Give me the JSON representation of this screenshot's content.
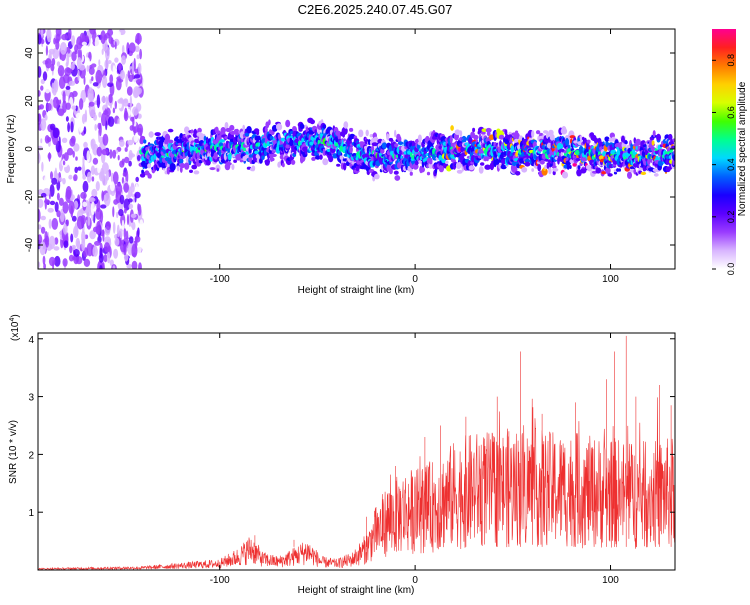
{
  "figure": {
    "title": "C2E6.2025.240.07.45.G07"
  },
  "chart_data": [
    {
      "type": "heatmap",
      "name": "spectrogram",
      "xlabel": "Height of straight line (km)",
      "ylabel": "Frequency (Hz)",
      "xlim": [
        -193,
        133
      ],
      "ylim": [
        -50,
        50
      ],
      "xticks": [
        -100,
        0,
        100
      ],
      "xtick_labels": [
        "-100",
        "0",
        "100"
      ],
      "yticks": [
        -40,
        -20,
        0,
        20,
        40
      ],
      "ytick_labels": [
        "-40",
        "-20",
        "0",
        "20",
        "40"
      ],
      "colorbar": {
        "label": "Normalized spectral amplitude",
        "range": [
          0,
          0.92
        ],
        "ticks": [
          0.0,
          0.2,
          0.4,
          0.6,
          0.8
        ],
        "tick_labels": [
          "0.0",
          "0.2",
          "0.4",
          "0.6",
          "0.8"
        ],
        "colors": [
          "#ffffff",
          "#d8b4ff",
          "#9a3cff",
          "#5b00ff",
          "#1a00ff",
          "#0060ff",
          "#00d8ff",
          "#00ff90",
          "#40ff00",
          "#d8ff00",
          "#ffd000",
          "#ff7a00",
          "#ff2020",
          "#ff0090"
        ]
      },
      "noise_region_x": [
        -193,
        -140
      ],
      "ridge_x": [
        -140,
        -120,
        -100,
        -80,
        -60,
        -45,
        -35,
        -20,
        0,
        20,
        35,
        50,
        70,
        90,
        110,
        133
      ],
      "ridge_freq": [
        -3,
        -1,
        0,
        1,
        3,
        3,
        0,
        -3,
        -2,
        -1,
        0,
        -2,
        -1,
        -2,
        -3,
        -1
      ]
    },
    {
      "type": "line",
      "name": "snr",
      "xlabel": "Height of straight line (km)",
      "ylabel": "SNR (10 * v/v)",
      "scale_label": "(x10",
      "scale_exp": "4",
      "scale_close": ")",
      "xlim": [
        -193,
        133
      ],
      "ylim": [
        0,
        4.1
      ],
      "xticks": [
        -100,
        0,
        100
      ],
      "xtick_labels": [
        "-100",
        "0",
        "100"
      ],
      "yticks": [
        1,
        2,
        3,
        4
      ],
      "ytick_labels": [
        "1",
        "2",
        "3",
        "4"
      ],
      "color": "#ee3030",
      "envelope_x": [
        -193,
        -140,
        -120,
        -100,
        -90,
        -84,
        -78,
        -70,
        -62,
        -55,
        -48,
        -40,
        -32,
        -25,
        -20,
        -15,
        -10,
        -5,
        0,
        10,
        20,
        30,
        40,
        50,
        60,
        70,
        80,
        90,
        100,
        110,
        120,
        133
      ],
      "envelope_y": [
        0.02,
        0.04,
        0.08,
        0.12,
        0.25,
        0.4,
        0.2,
        0.15,
        0.25,
        0.35,
        0.15,
        0.12,
        0.2,
        0.4,
        0.7,
        0.9,
        1.0,
        1.1,
        1.1,
        1.2,
        1.4,
        1.5,
        1.5,
        1.55,
        1.55,
        1.5,
        1.5,
        1.45,
        1.45,
        1.4,
        1.4,
        1.45
      ],
      "spikes": [
        [
          -82,
          0.6
        ],
        [
          -62,
          0.52
        ],
        [
          -25,
          0.92
        ],
        [
          -10,
          1.8
        ],
        [
          5,
          2.3
        ],
        [
          13,
          2.5
        ],
        [
          26,
          2.65
        ],
        [
          42,
          3.0
        ],
        [
          48,
          2.4
        ],
        [
          54,
          3.78
        ],
        [
          65,
          2.7
        ],
        [
          82,
          2.9
        ],
        [
          98,
          3.3
        ],
        [
          102,
          3.78
        ],
        [
          108,
          4.05
        ],
        [
          113,
          3.0
        ],
        [
          125,
          3.2
        ],
        [
          131,
          2.85
        ]
      ]
    }
  ]
}
